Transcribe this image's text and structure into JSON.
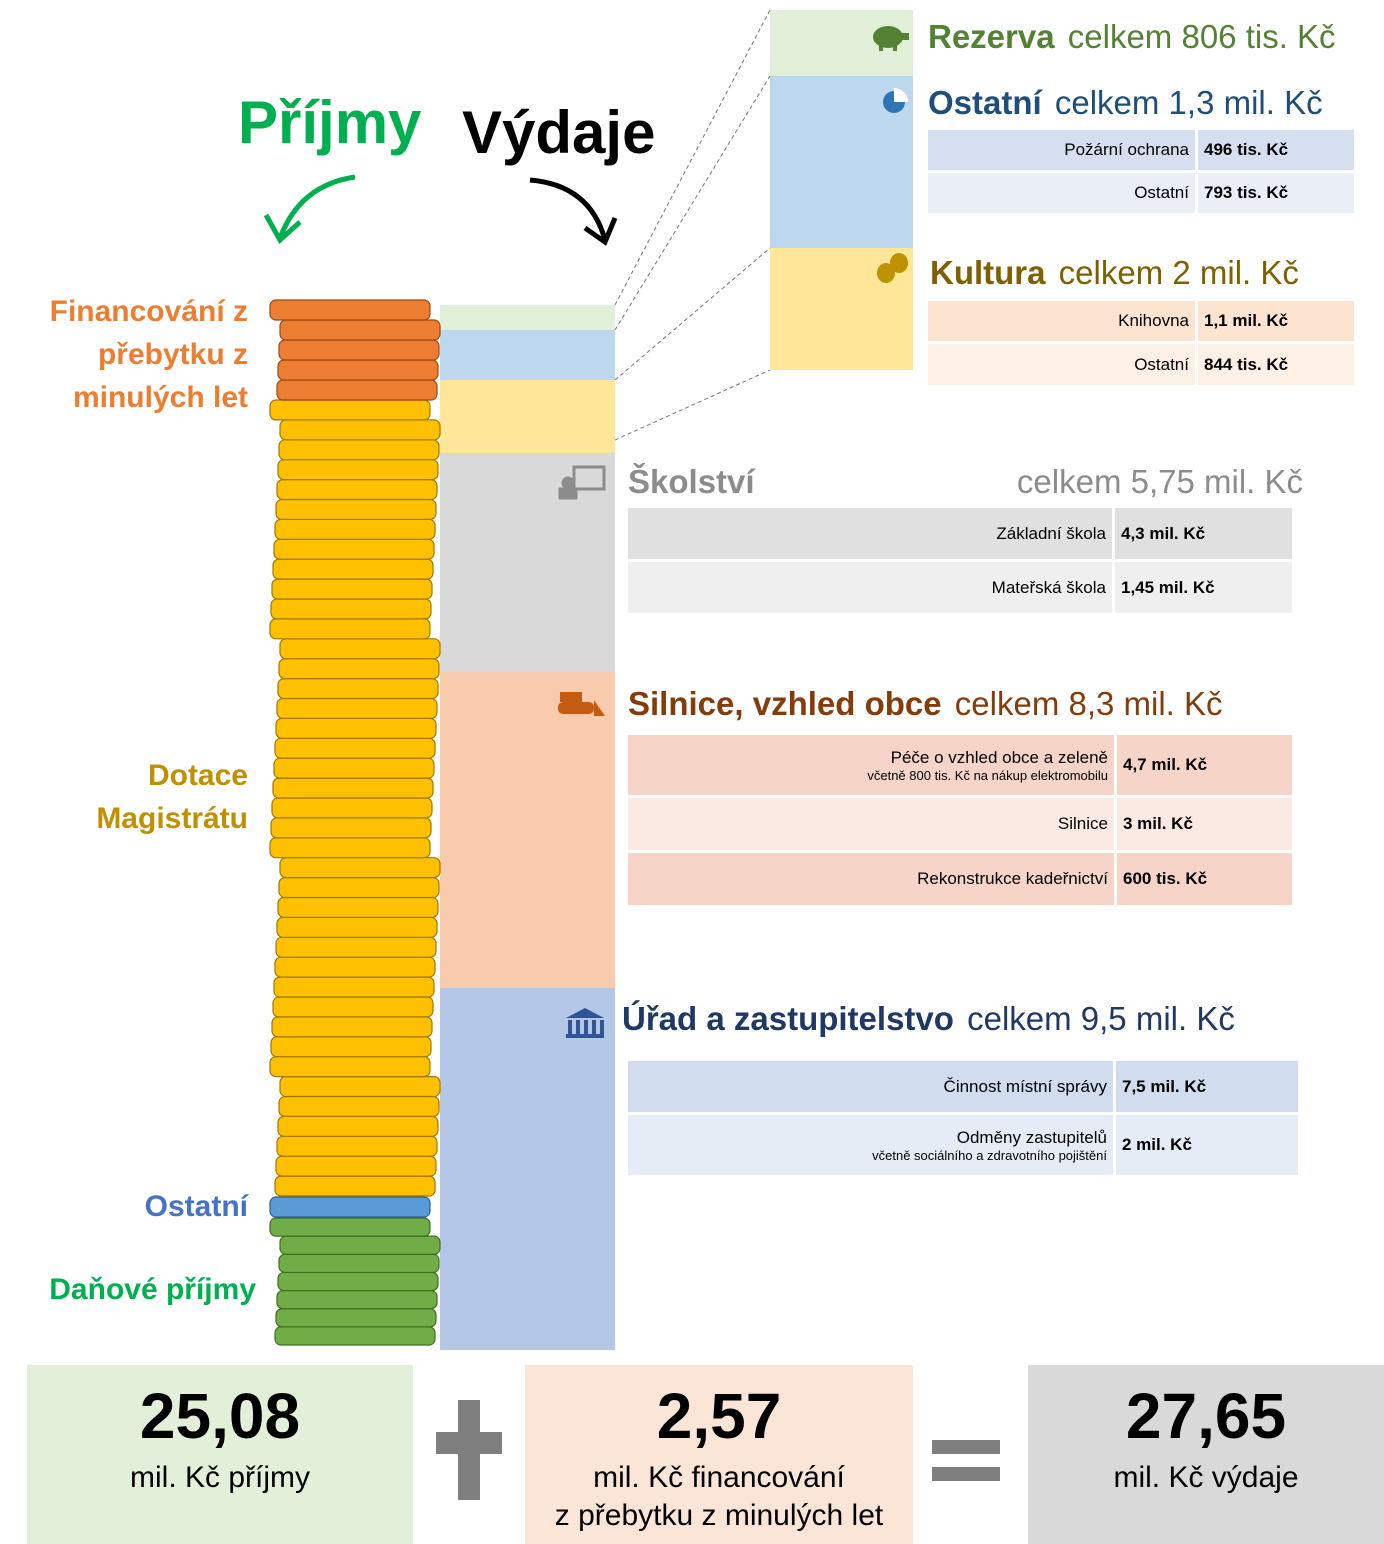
{
  "header": {
    "income": "Příjmy",
    "expenses": "Výdaje"
  },
  "income_labels": [
    {
      "lines": [
        "Financování z",
        "přebytku z",
        "minulých let"
      ]
    },
    {
      "lines": [
        "Dotace",
        "Magistrátu"
      ]
    },
    {
      "lines": [
        "Ostatní"
      ]
    },
    {
      "lines": [
        "Daňové příjmy"
      ]
    }
  ],
  "sections": [
    {
      "title": "Rezerva",
      "total": "celkem 806 tis. Kč",
      "rows": []
    },
    {
      "title": "Ostatní",
      "total": "celkem 1,3 mil. Kč",
      "rows": [
        {
          "label": "Požární ochrana",
          "value": "496 tis. Kč"
        },
        {
          "label": "Ostatní",
          "value": "793 tis. Kč"
        }
      ]
    },
    {
      "title": "Kultura",
      "total": "celkem 2 mil. Kč",
      "rows": [
        {
          "label": "Knihovna",
          "value": "1,1 mil. Kč"
        },
        {
          "label": "Ostatní",
          "value": "844 tis. Kč"
        }
      ]
    },
    {
      "title": "Školství",
      "total": "celkem 5,75 mil. Kč",
      "rows": [
        {
          "label": "Základní škola",
          "value": "4,3 mil. Kč"
        },
        {
          "label": "Mateřská škola",
          "value": "1,45 mil. Kč"
        }
      ]
    },
    {
      "title": "Silnice, vzhled obce",
      "total": "celkem 8,3 mil. Kč",
      "rows": [
        {
          "label": "Péče o vzhled obce a zeleně",
          "note": "včetně 800 tis. Kč na nákup elektromobilu",
          "value": "4,7 mil. Kč"
        },
        {
          "label": "Silnice",
          "value": "3 mil. Kč"
        },
        {
          "label": "Rekonstrukce kadeřnictví",
          "value": "600 tis. Kč"
        }
      ]
    },
    {
      "title": "Úřad a zastupitelstvo",
      "total": "celkem 9,5 mil. Kč",
      "rows": [
        {
          "label": "Činnost místní správy",
          "value": "7,5 mil. Kč"
        },
        {
          "label": "Odměny zastupitelů",
          "note": "včetně sociálního a zdravotního pojištění",
          "value": "2 mil. Kč"
        }
      ]
    }
  ],
  "summary": [
    {
      "value": "25,08",
      "lines": [
        "mil. Kč příjmy"
      ]
    },
    {
      "value": "2,57",
      "lines": [
        "mil. Kč financování",
        "z přebytku z minulých let"
      ]
    },
    {
      "value": "27,65",
      "lines": [
        "mil. Kč výdaje"
      ]
    }
  ]
}
